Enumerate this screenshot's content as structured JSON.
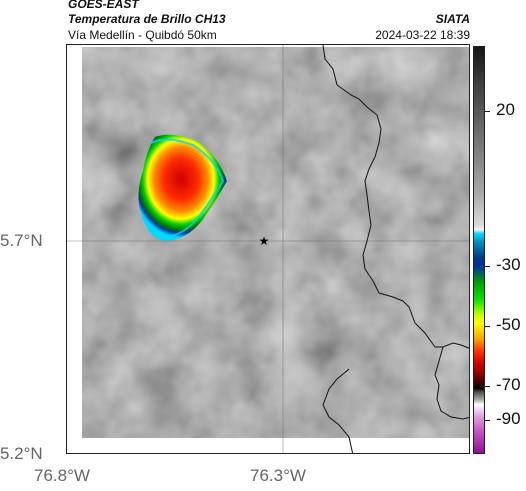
{
  "header": {
    "satellite": "GOES-EAST",
    "product": "Temperatura de Brillo CH13",
    "route": "Vía Medellín - Quibdó 50km",
    "org": "SIATA",
    "datetime": "2024-03-22 18:39"
  },
  "axes": {
    "lat_labels": [
      "5.7°N",
      "5.2°N"
    ],
    "lon_labels": [
      "76.8°W",
      "76.3°W"
    ]
  },
  "colorbar": {
    "tick_labels": [
      "20",
      "-30",
      "-50",
      "-70",
      "-90"
    ]
  },
  "map": {
    "marker_icon": "star-icon",
    "palette": {
      "cold_core": "#d40000",
      "mid": "#ff7a00",
      "warm_edge": "#ffff00",
      "green": "#00d000",
      "blue": "#0038a0",
      "cyan": "#00d8ff"
    }
  }
}
